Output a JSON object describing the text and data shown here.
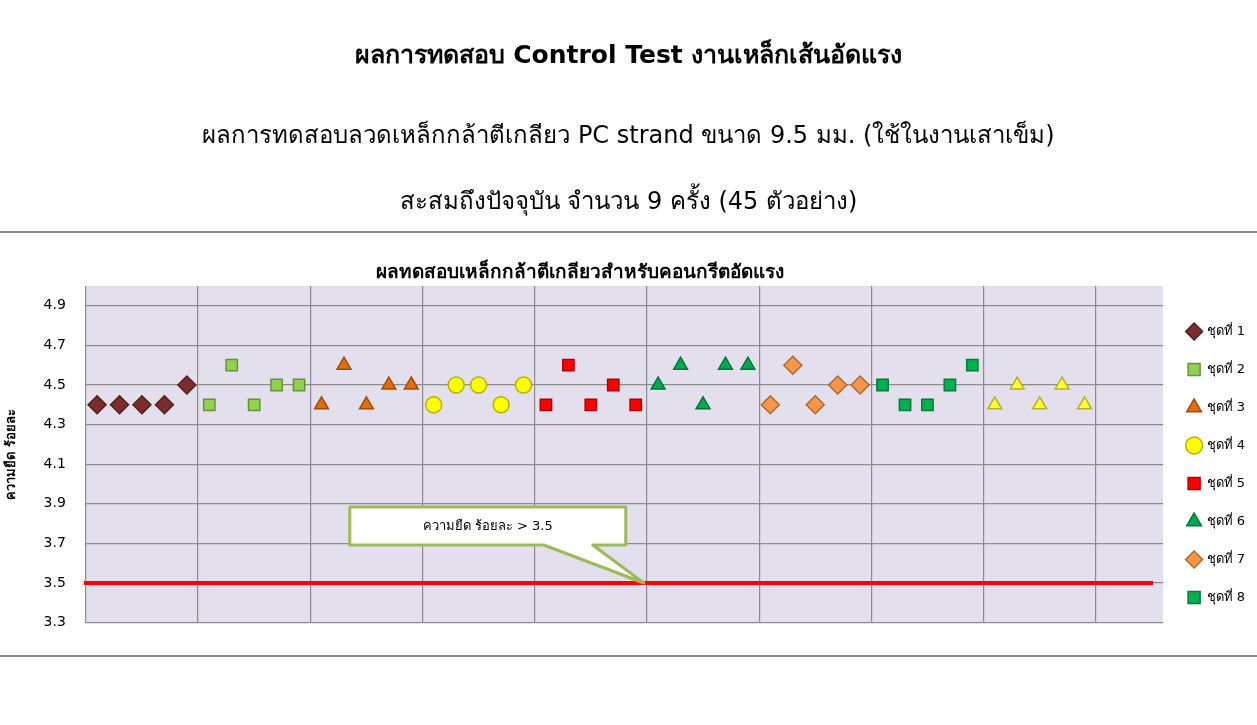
{
  "chart_data": {
    "type": "scatter",
    "title": "ผลการทดสอบ Control Test งานเหล็กเส้นอัดแรง",
    "subtitle": "ผลการทดสอบลวดเหล็กกล้าตีเกลียว PC strand ขนาด 9.5 มม. (ใช้ในงานเสาเข็ม)\nสะสมถึงปัจจุบัน จำนวน 9 ครั้ง (45 ตัวอย่าง)",
    "ylabel": "ความยืด ร้อยละ",
    "annotations": [
      "ผลทดสอบเหล็กกล้าตีเกลียวสำหรับคอนกรีตอัดแรง",
      "ความยืด ร้อยละ > 3.5"
    ],
    "categories": [
      null,
      null,
      null,
      null,
      null,
      null,
      null,
      null,
      null,
      null,
      null,
      null,
      null,
      null,
      null,
      null,
      null,
      null,
      null,
      null,
      null,
      null,
      null,
      null,
      null,
      null,
      null,
      null,
      null,
      null,
      null,
      null,
      null,
      null,
      null,
      null,
      null,
      null,
      null,
      null,
      null,
      null,
      null,
      null,
      null,
      null,
      null,
      null
    ],
    "series": [
      {
        "name": "ชุดที่ 1",
        "color": "#7b2c2c",
        "marker": "diamond",
        "values": [
          4.4,
          4.4,
          4.4,
          4.4,
          4.5,
          null,
          null,
          null,
          null,
          null,
          null,
          null,
          null,
          null,
          null,
          null,
          null,
          null,
          null,
          null,
          null,
          null,
          null,
          null,
          null,
          null,
          null,
          null,
          null,
          null,
          null,
          null,
          null,
          null,
          null,
          null,
          null,
          null,
          null,
          null,
          null,
          null,
          null,
          null,
          null,
          null,
          null,
          null
        ]
      },
      {
        "name": "ชุดที่ 2",
        "color": "#92d050",
        "marker": "square",
        "values": [
          null,
          null,
          null,
          null,
          null,
          4.4,
          4.6,
          4.4,
          4.5,
          4.5,
          null,
          null,
          null,
          null,
          null,
          null,
          null,
          null,
          null,
          null,
          null,
          null,
          null,
          null,
          null,
          null,
          null,
          null,
          null,
          null,
          null,
          null,
          null,
          null,
          null,
          null,
          null,
          null,
          null,
          null,
          null,
          null,
          null,
          null,
          null,
          null,
          null,
          null
        ]
      },
      {
        "name": "ชุดที่ 3",
        "color": "#e46c0a",
        "marker": "triangle",
        "values": [
          null,
          null,
          null,
          null,
          null,
          null,
          null,
          null,
          null,
          null,
          4.4,
          4.6,
          4.4,
          4.5,
          4.5,
          null,
          null,
          null,
          null,
          null,
          null,
          null,
          null,
          null,
          null,
          null,
          null,
          null,
          null,
          null,
          null,
          null,
          null,
          null,
          null,
          null,
          null,
          null,
          null,
          null,
          null,
          null,
          null,
          null,
          null,
          null,
          null,
          null
        ]
      },
      {
        "name": "ชุดที่ 4",
        "color": "#ffff00",
        "marker": "circle",
        "values": [
          null,
          null,
          null,
          null,
          null,
          null,
          null,
          null,
          null,
          null,
          null,
          null,
          null,
          null,
          null,
          4.4,
          4.5,
          4.5,
          4.4,
          4.5,
          null,
          null,
          null,
          null,
          null,
          null,
          null,
          null,
          null,
          null,
          null,
          null,
          null,
          null,
          null,
          null,
          null,
          null,
          null,
          null,
          null,
          null,
          null,
          null,
          null,
          null,
          null,
          null
        ]
      },
      {
        "name": "ชุดที่ 5",
        "color": "#ff0000",
        "marker": "square",
        "values": [
          null,
          null,
          null,
          null,
          null,
          null,
          null,
          null,
          null,
          null,
          null,
          null,
          null,
          null,
          null,
          null,
          null,
          null,
          null,
          null,
          4.4,
          4.6,
          4.4,
          4.5,
          4.4,
          null,
          null,
          null,
          null,
          null,
          null,
          null,
          null,
          null,
          null,
          null,
          null,
          null,
          null,
          null,
          null,
          null,
          null,
          null,
          null,
          null,
          null,
          null
        ]
      },
      {
        "name": "ชุดที่ 6",
        "color": "#00a84f",
        "marker": "triangle",
        "values": [
          null,
          null,
          null,
          null,
          null,
          null,
          null,
          null,
          null,
          null,
          null,
          null,
          null,
          null,
          null,
          null,
          null,
          null,
          null,
          null,
          null,
          null,
          null,
          null,
          null,
          4.5,
          4.6,
          4.4,
          4.6,
          4.6,
          null,
          null,
          null,
          null,
          null,
          null,
          null,
          null,
          null,
          null,
          null,
          null,
          null,
          null,
          null,
          null,
          null,
          null
        ]
      },
      {
        "name": "ชุดที่ 7",
        "color": "#f79646",
        "marker": "diamond",
        "values": [
          null,
          null,
          null,
          null,
          null,
          null,
          null,
          null,
          null,
          null,
          null,
          null,
          null,
          null,
          null,
          null,
          null,
          null,
          null,
          null,
          null,
          null,
          null,
          null,
          null,
          null,
          null,
          null,
          null,
          null,
          4.4,
          4.6,
          4.4,
          4.5,
          4.5,
          null,
          null,
          null,
          null,
          null,
          null,
          null,
          null,
          null,
          null,
          null,
          null,
          null
        ]
      },
      {
        "name": "ชุดที่ 8",
        "color": "#00b050",
        "marker": "square",
        "values": [
          null,
          null,
          null,
          null,
          null,
          null,
          null,
          null,
          null,
          null,
          null,
          null,
          null,
          null,
          null,
          null,
          null,
          null,
          null,
          null,
          null,
          null,
          null,
          null,
          null,
          null,
          null,
          null,
          null,
          null,
          null,
          null,
          null,
          null,
          null,
          4.5,
          4.4,
          4.4,
          4.5,
          4.6,
          null,
          null,
          null,
          null,
          null,
          null,
          null,
          null
        ]
      },
      {
        "color": "#ffff33",
        "marker": "triangle",
        "values": [
          null,
          null,
          null,
          null,
          null,
          null,
          null,
          null,
          null,
          null,
          null,
          null,
          null,
          null,
          null,
          null,
          null,
          null,
          null,
          null,
          null,
          null,
          null,
          null,
          null,
          null,
          null,
          null,
          null,
          null,
          null,
          null,
          null,
          null,
          null,
          null,
          null,
          null,
          null,
          null,
          4.4,
          4.5,
          4.4,
          4.5,
          4.4,
          null,
          null,
          null
        ]
      }
    ],
    "ylim": [
      3.3,
      5.0
    ],
    "yticks": [
      3.3,
      3.5,
      3.7,
      3.9,
      4.1,
      4.3,
      4.5,
      4.7,
      4.9
    ],
    "ref_lines": [
      {
        "axis": "y",
        "value": 3.5,
        "color": "#ff0000"
      }
    ],
    "grid": true,
    "legend": "right"
  }
}
